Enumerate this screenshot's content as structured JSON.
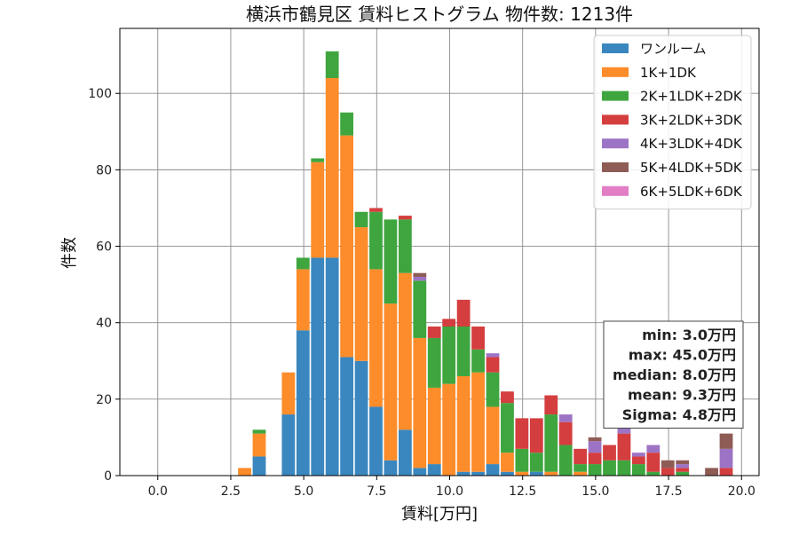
{
  "chart_data": {
    "type": "bar",
    "title": "横浜市鶴見区 賃料ヒストグラム 物件数: 1213件",
    "xlabel": "賃料[万円]",
    "ylabel": "件数",
    "xlim": [
      -1.3,
      20.6
    ],
    "ylim": [
      0,
      117
    ],
    "x_ticks": [
      0,
      2.5,
      5,
      7.5,
      10,
      12.5,
      15,
      17.5,
      20
    ],
    "x_tick_labels": [
      "0.0",
      "2.5",
      "5.0",
      "7.5",
      "10.0",
      "12.5",
      "15.0",
      "17.5",
      "20.0"
    ],
    "y_ticks": [
      0,
      20,
      40,
      60,
      80,
      100
    ],
    "y_tick_labels": [
      "0",
      "20",
      "40",
      "60",
      "80",
      "100"
    ],
    "grid": true,
    "legend_position": "top-right",
    "bin_width": 0.5,
    "bin_starts": [
      2.75,
      3.25,
      3.75,
      4.25,
      4.75,
      5.25,
      5.75,
      6.25,
      6.75,
      7.25,
      7.75,
      8.25,
      8.75,
      9.25,
      9.75,
      10.25,
      10.75,
      11.25,
      11.75,
      12.25,
      12.75,
      13.25,
      13.75,
      14.25,
      14.75,
      15.25,
      15.75,
      16.25,
      16.75,
      17.25,
      17.75,
      18.25,
      18.75,
      19.25
    ],
    "series": [
      {
        "name": "ワンルーム",
        "color": "#3a87bf",
        "values": [
          0,
          5,
          0,
          16,
          38,
          57,
          57,
          31,
          30,
          18,
          4,
          12,
          2,
          3,
          0,
          1,
          1,
          3,
          1,
          0,
          1,
          0,
          0,
          0,
          0,
          0,
          0,
          0,
          0,
          0,
          0,
          0,
          0,
          0
        ]
      },
      {
        "name": "1K+1DK",
        "color": "#fd8c2b",
        "values": [
          2,
          6,
          0,
          11,
          16,
          25,
          47,
          58,
          35,
          36,
          41,
          41,
          34,
          20,
          24,
          25,
          26,
          15,
          5,
          1,
          0,
          1,
          0,
          1,
          0,
          0,
          0,
          0,
          0,
          0,
          0,
          0,
          0,
          0
        ]
      },
      {
        "name": "2K+1LDK+2DK",
        "color": "#3fa63f",
        "values": [
          0,
          1,
          0,
          0,
          3,
          1,
          7,
          6,
          4,
          15,
          22,
          14,
          15,
          13,
          15,
          13,
          6,
          9,
          13,
          6,
          5,
          15,
          8,
          2,
          3,
          4,
          4,
          3,
          1,
          0,
          1,
          0,
          0,
          0
        ]
      },
      {
        "name": "3K+2LDK+3DK",
        "color": "#d43e3e",
        "values": [
          0,
          0,
          0,
          0,
          0,
          0,
          0,
          0,
          0,
          1,
          0,
          1,
          0,
          3,
          2,
          7,
          6,
          4,
          3,
          8,
          9,
          5,
          6,
          4,
          3,
          4,
          7,
          2,
          5,
          2,
          1,
          0,
          0,
          2
        ]
      },
      {
        "name": "4K+3LDK+4DK",
        "color": "#9d74c5",
        "values": [
          0,
          0,
          0,
          0,
          0,
          0,
          0,
          0,
          0,
          0,
          0,
          0,
          1,
          0,
          0,
          0,
          0,
          1,
          0,
          0,
          0,
          0,
          2,
          0,
          3,
          0,
          2,
          1,
          2,
          0,
          1,
          0,
          0,
          5
        ]
      },
      {
        "name": "5K+4LDK+5DK",
        "color": "#8e5c55",
        "values": [
          0,
          0,
          0,
          0,
          0,
          0,
          0,
          0,
          0,
          0,
          0,
          0,
          1,
          0,
          0,
          0,
          0,
          0,
          0,
          0,
          0,
          0,
          0,
          0,
          1,
          0,
          0,
          0,
          0,
          2,
          1,
          0,
          2,
          4
        ]
      },
      {
        "name": "6K+5LDK+6DK",
        "color": "#e27dc6",
        "values": [
          0,
          0,
          0,
          0,
          0,
          0,
          0,
          0,
          0,
          0,
          0,
          0,
          0,
          0,
          0,
          0,
          0,
          0,
          0,
          0,
          0,
          0,
          0,
          0,
          0,
          0,
          0,
          0,
          0,
          0,
          0,
          0,
          0,
          0
        ]
      }
    ],
    "stats": [
      "min: 3.0万円",
      "max: 45.0万円",
      "median: 8.0万円",
      "mean: 9.3万円",
      "Sigma: 4.8万円"
    ]
  }
}
